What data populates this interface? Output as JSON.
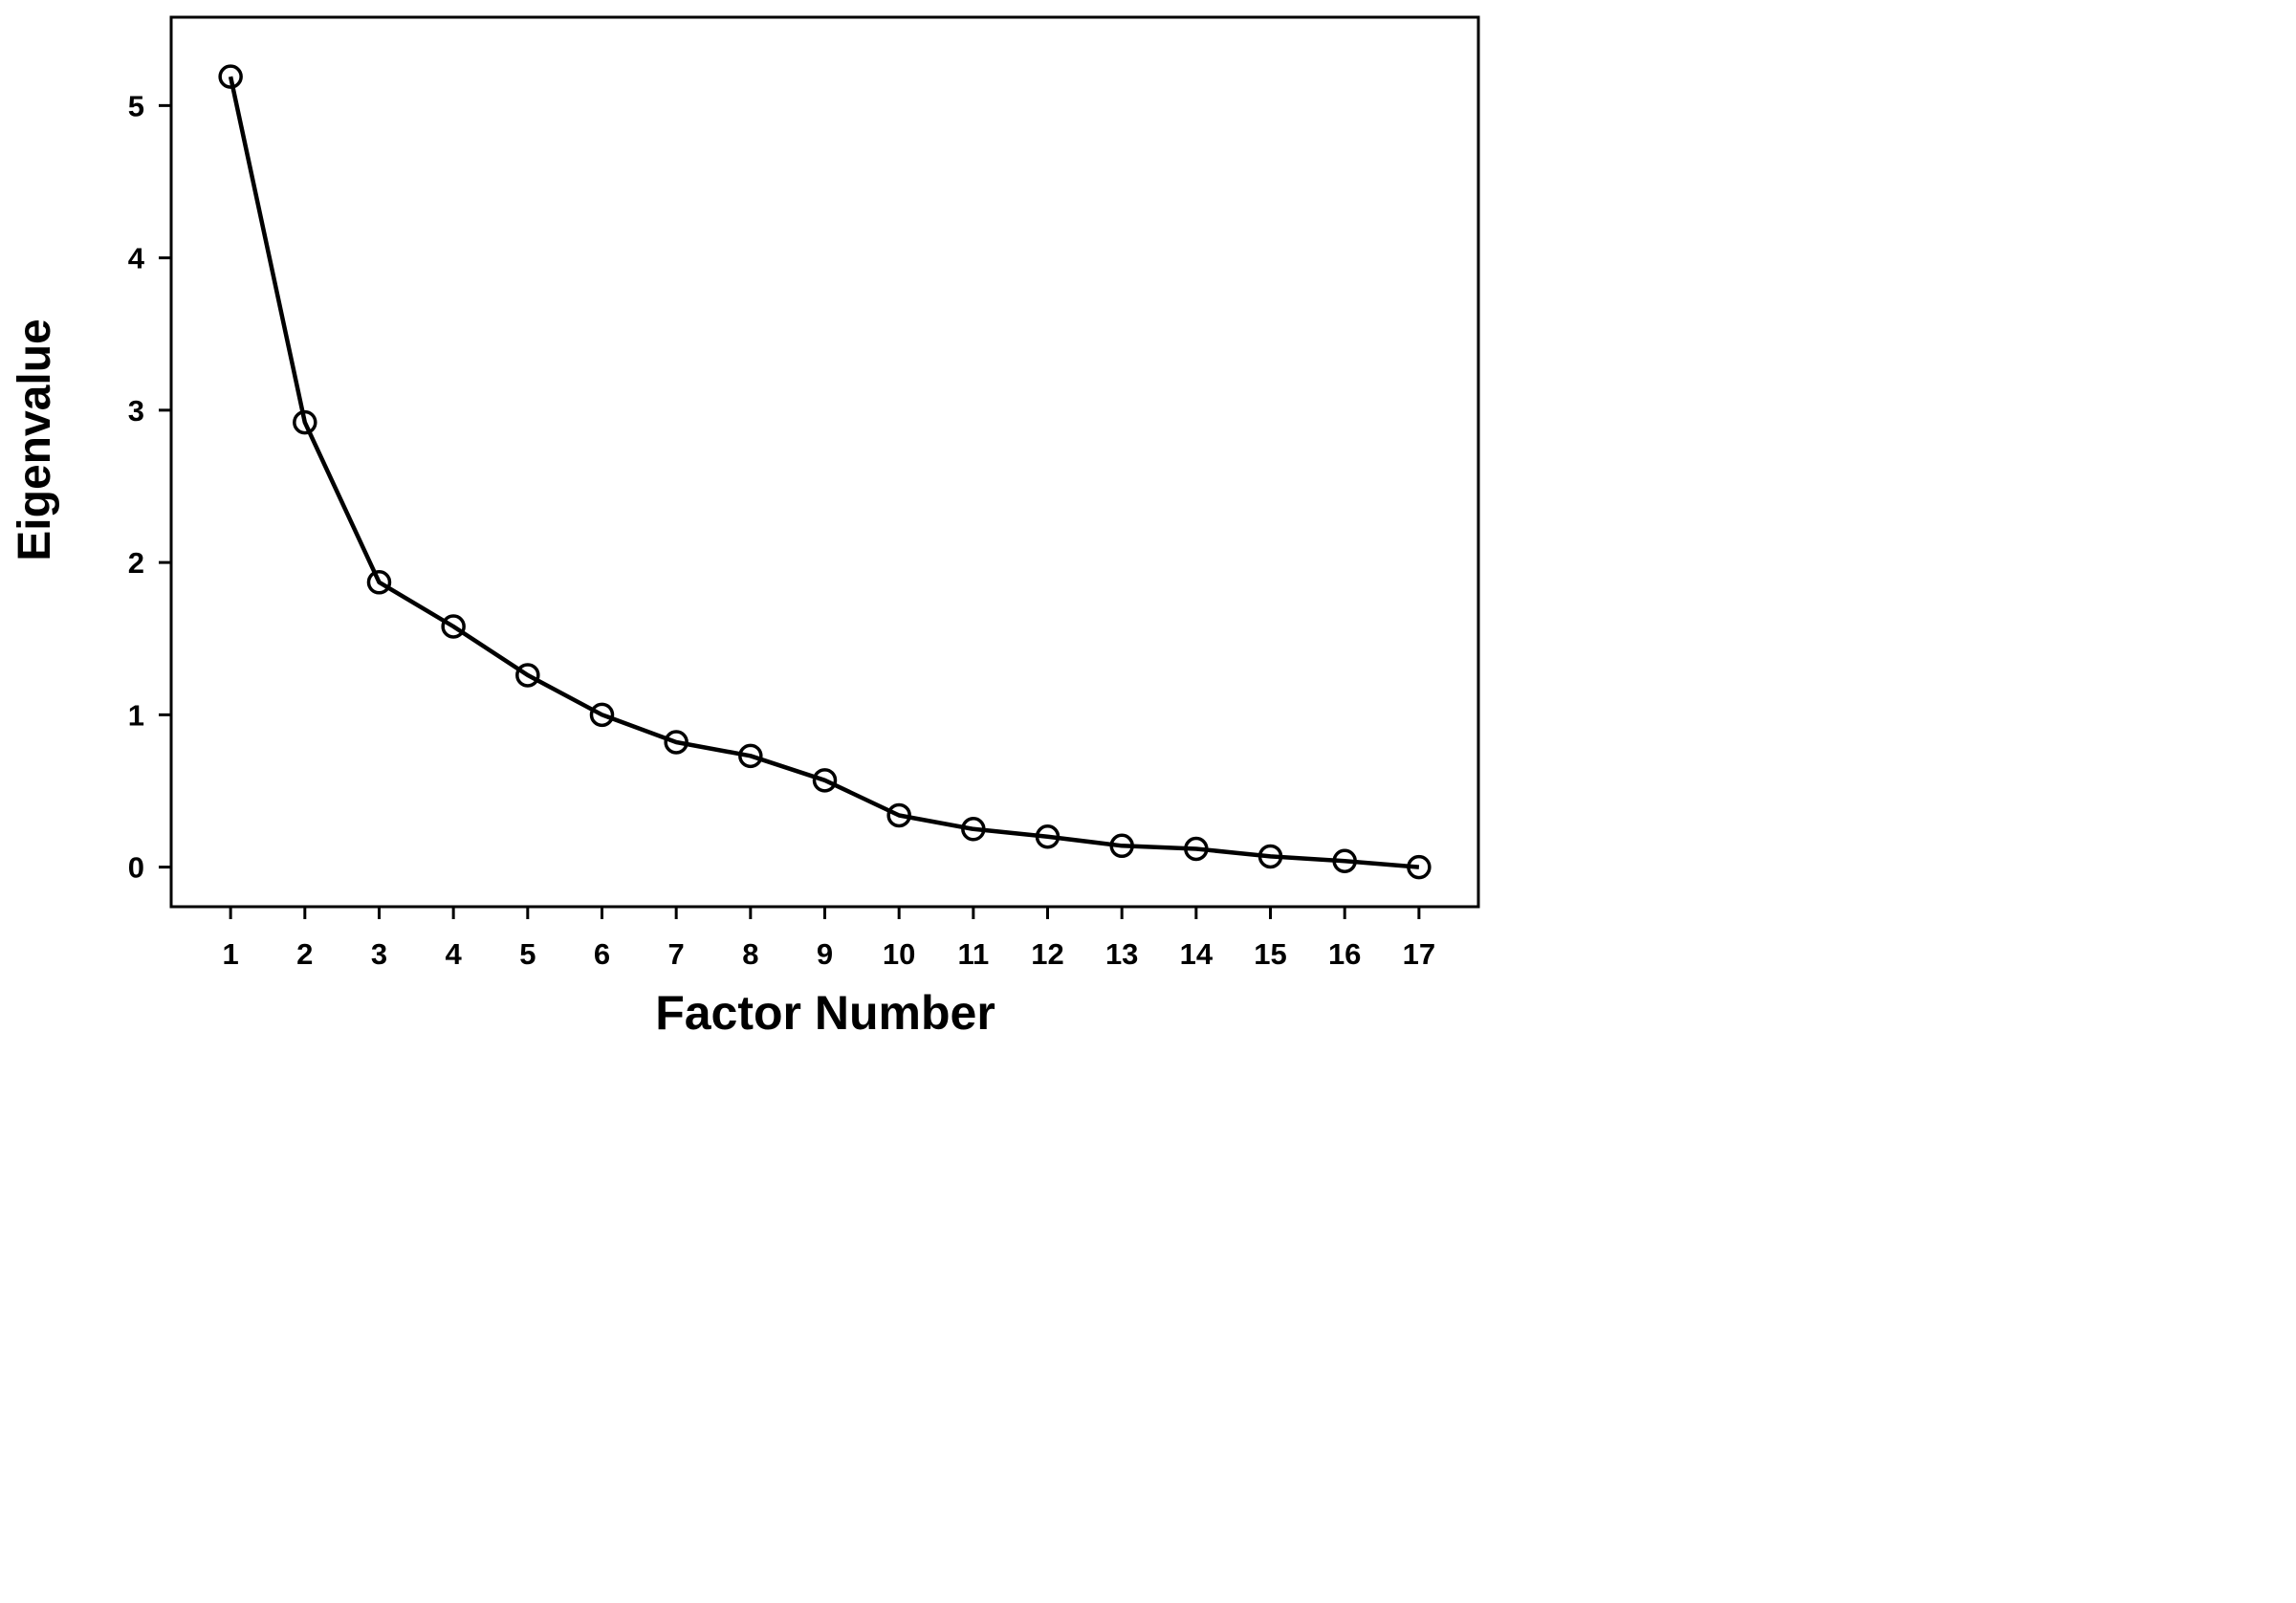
{
  "chart_data": {
    "type": "line",
    "title": "",
    "xlabel": "Factor Number",
    "ylabel": "Eigenvalue",
    "x": [
      1,
      2,
      3,
      4,
      5,
      6,
      7,
      8,
      9,
      10,
      11,
      12,
      13,
      14,
      15,
      16,
      17
    ],
    "series": [
      {
        "values": [
          5.19,
          2.92,
          1.87,
          1.58,
          1.26,
          1.0,
          0.82,
          0.73,
          0.57,
          0.34,
          0.25,
          0.2,
          0.14,
          0.12,
          0.07,
          0.04,
          0.0
        ]
      }
    ],
    "xlim": [
      0.2,
      17.8
    ],
    "ylim": [
      -0.26,
      5.58
    ],
    "xticks": [
      "1",
      "2",
      "3",
      "4",
      "5",
      "6",
      "7",
      "8",
      "9",
      "10",
      "11",
      "12",
      "13",
      "14",
      "15",
      "16",
      "17"
    ],
    "yticks": [
      "0",
      "1",
      "2",
      "3",
      "4",
      "5"
    ],
    "marker": "open-circle",
    "grid": false,
    "legend": "none",
    "colors": {
      "line": "#000000",
      "marker": "#000000",
      "background": "#ffffff"
    }
  }
}
